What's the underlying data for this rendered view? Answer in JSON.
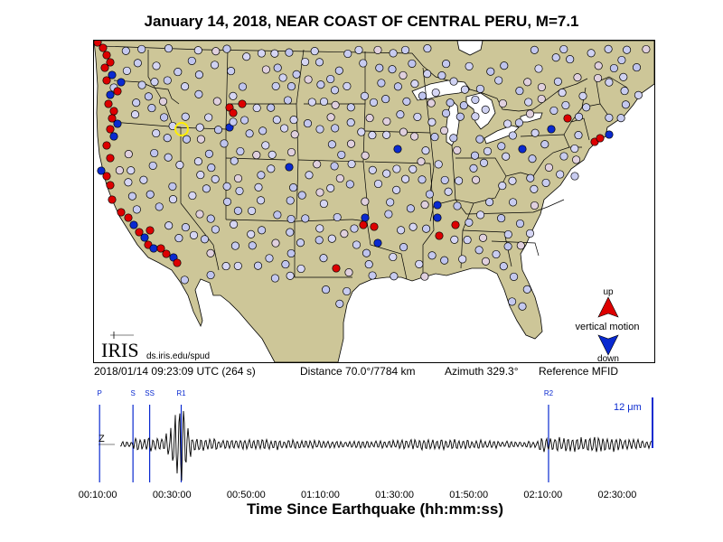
{
  "title": "January 14, 2018, NEAR COAST OF CENTRAL PERU, M=7.1",
  "colors": {
    "land": "#cdc698",
    "water": "#ffffff",
    "up": "#dd0000",
    "down": "#0a2ad0",
    "neutral": "#c8ccf0",
    "highlight": "#ffee00"
  },
  "map": {
    "logo_text": "IRIS",
    "logo_url": "ds.iris.edu/spud",
    "legend": {
      "up_label": "up",
      "middle_label": "vertical motion",
      "down_label": "down"
    }
  },
  "info": {
    "timestamp": "2018/01/14 09:23:09 UTC (264 s)",
    "distance": "Distance  70.0°/7784 km",
    "azimuth": "Azimuth 329.3°",
    "reference": "Reference MFID"
  },
  "seismogram": {
    "component": "Z",
    "amplitude": "12 μm",
    "phases": [
      {
        "label": "P",
        "t": "00:10:30"
      },
      {
        "label": "S",
        "t": "00:19:30"
      },
      {
        "label": "SS",
        "t": "00:24:00"
      },
      {
        "label": "R1",
        "t": "00:32:30"
      },
      {
        "label": "R2",
        "t": "02:11:30"
      }
    ],
    "ticks": [
      "00:10:00",
      "00:30:00",
      "00:50:00",
      "01:10:00",
      "01:30:00",
      "01:50:00",
      "02:10:00",
      "02:30:00"
    ],
    "xlabel": "Time Since Earthquake (hh:mm:ss)"
  }
}
